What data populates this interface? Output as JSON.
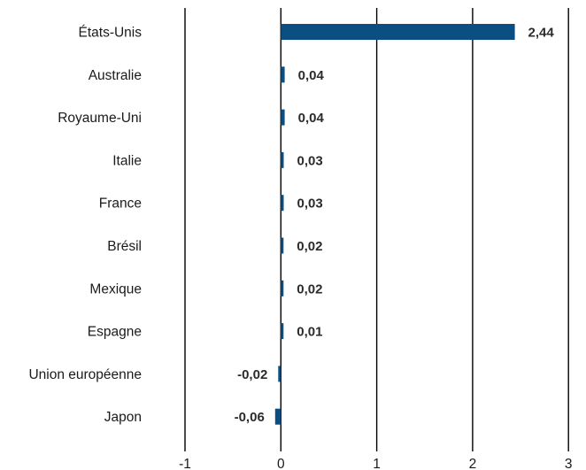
{
  "chart_data": {
    "type": "bar",
    "orientation": "horizontal",
    "categories": [
      "États-Unis",
      "Australie",
      "Royaume-Uni",
      "Italie",
      "France",
      "Brésil",
      "Mexique",
      "Espagne",
      "Union européenne",
      "Japon"
    ],
    "values": [
      2.44,
      0.04,
      0.04,
      0.03,
      0.03,
      0.02,
      0.02,
      0.01,
      -0.02,
      -0.06
    ],
    "value_labels": [
      "2,44",
      "0,04",
      "0,04",
      "0,03",
      "0,03",
      "0,02",
      "0,02",
      "0,01",
      "-0,02",
      "-0,06"
    ],
    "xlim": [
      -1,
      3
    ],
    "x_ticks": [
      -1,
      0,
      1,
      2,
      3
    ],
    "x_tick_labels": [
      "-1",
      "0",
      "1",
      "2",
      "3"
    ],
    "grid": "vertical",
    "bar_color": "#0b4f82",
    "legend": "none"
  }
}
